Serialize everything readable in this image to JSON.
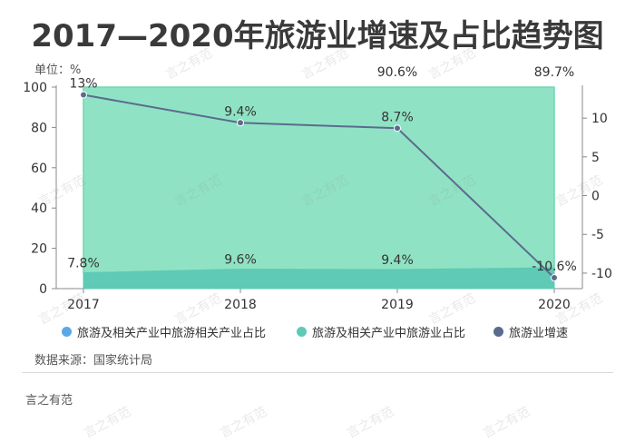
{
  "title": "2017—2020年旅游业增速及占比趋势图",
  "unit_label": "单位：%",
  "source": "数据来源：国家统计局",
  "brand": "言之有范",
  "watermark": "言之有范",
  "colors": {
    "related_share": "#5fcab5",
    "tourism_share": "#8fe3c4",
    "growth": "#5b6b8e",
    "legend_related": "#5aa9e6"
  },
  "chart_data": {
    "type": "area",
    "categories": [
      "2017",
      "2018",
      "2019",
      "2020"
    ],
    "y_left": {
      "ylim": [
        0,
        100
      ],
      "ticks": [
        0,
        20,
        40,
        60,
        80,
        100
      ]
    },
    "y_right": {
      "ylim": [
        -12,
        14
      ],
      "ticks": [
        -10,
        -5,
        0,
        5,
        10
      ]
    },
    "series": [
      {
        "name": "旅游及相关产业中旅游相关产业占比",
        "axis": "left",
        "values": [
          7.8,
          9.6,
          9.4,
          10.3
        ],
        "labels": [
          "7.8%",
          "9.6%",
          "9.4%",
          ""
        ]
      },
      {
        "name": "旅游及相关产业中旅游业占比",
        "axis": "left",
        "values": [
          92.2,
          90.4,
          90.6,
          89.7
        ],
        "labels": [
          "",
          "",
          "90.6%",
          "89.7%"
        ]
      },
      {
        "name": "旅游业增速",
        "axis": "right",
        "values": [
          13,
          9.4,
          8.7,
          -10.6
        ],
        "labels": [
          "13%",
          "9.4%",
          "8.7%",
          "-10.6%"
        ]
      }
    ],
    "legend_position": "bottom"
  }
}
